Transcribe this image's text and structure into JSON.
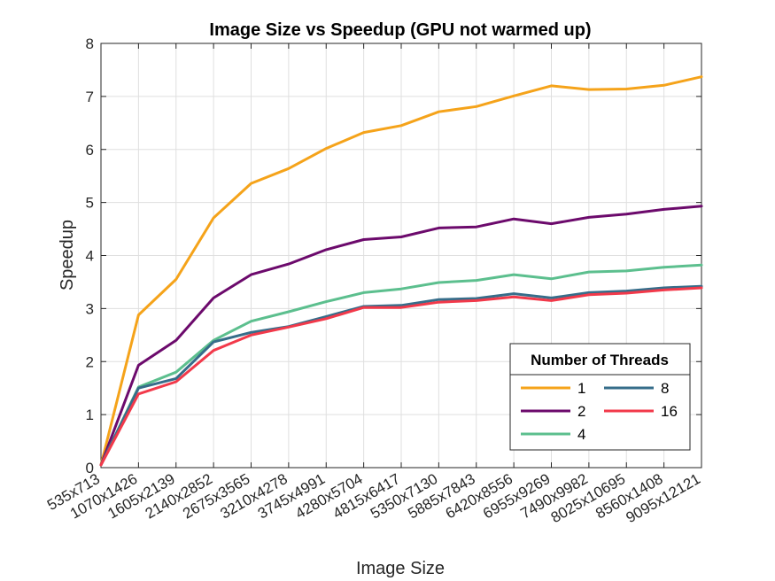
{
  "chart_data": {
    "type": "line",
    "title": "Image Size vs Speedup (GPU not warmed up)",
    "xlabel": "Image Size",
    "ylabel": "Speedup",
    "ylim": [
      0,
      8
    ],
    "yticks": [
      "0",
      "1",
      "2",
      "3",
      "4",
      "5",
      "6",
      "7",
      "8"
    ],
    "grid": true,
    "legend_title": "Number of Threads",
    "legend_position": "bottom-right",
    "categories": [
      "535x713",
      "1070x1426",
      "1605x2139",
      "2140x2852",
      "2675x3565",
      "3210x4278",
      "3745x4991",
      "4280x5704",
      "4815x6417",
      "5350x7130",
      "5885x7843",
      "6420x8556",
      "6955x9269",
      "7490x9982",
      "8025x10695",
      "8560x1408",
      "9095x12121"
    ],
    "series": [
      {
        "name": "1",
        "color": "#F5A31A",
        "values": [
          0.05,
          2.88,
          3.55,
          4.71,
          5.36,
          5.64,
          6.02,
          6.32,
          6.45,
          6.71,
          6.81,
          7.01,
          7.2,
          7.13,
          7.14,
          7.21,
          7.37
        ]
      },
      {
        "name": "2",
        "color": "#6C0A6C",
        "values": [
          0.05,
          1.93,
          2.4,
          3.2,
          3.64,
          3.84,
          4.11,
          4.3,
          4.35,
          4.52,
          4.54,
          4.69,
          4.6,
          4.72,
          4.78,
          4.87,
          4.93
        ]
      },
      {
        "name": "4",
        "color": "#5CBF8E",
        "values": [
          0.05,
          1.52,
          1.8,
          2.4,
          2.76,
          2.94,
          3.13,
          3.3,
          3.37,
          3.49,
          3.53,
          3.64,
          3.56,
          3.69,
          3.71,
          3.78,
          3.82
        ]
      },
      {
        "name": "8",
        "color": "#366D8A",
        "values": [
          0.05,
          1.5,
          1.68,
          2.37,
          2.55,
          2.66,
          2.85,
          3.04,
          3.06,
          3.17,
          3.19,
          3.28,
          3.2,
          3.3,
          3.33,
          3.39,
          3.42
        ]
      },
      {
        "name": "16",
        "color": "#F2394A",
        "values": [
          0.05,
          1.39,
          1.62,
          2.21,
          2.5,
          2.65,
          2.81,
          3.02,
          3.02,
          3.12,
          3.15,
          3.22,
          3.15,
          3.26,
          3.29,
          3.35,
          3.39
        ]
      }
    ]
  }
}
